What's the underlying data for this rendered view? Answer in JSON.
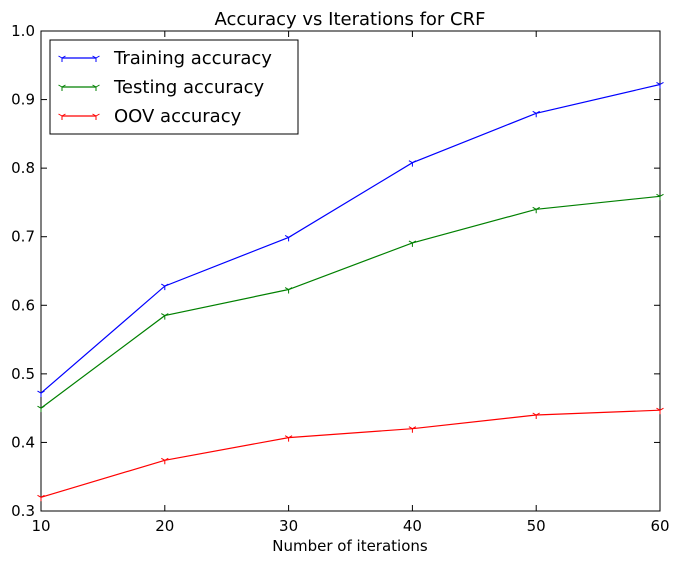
{
  "chart_data": {
    "type": "line",
    "title": "Accuracy vs Iterations for CRF",
    "xlabel": "Number of iterations",
    "ylabel": "",
    "x": [
      10,
      20,
      30,
      40,
      50,
      60
    ],
    "xlim": [
      10,
      60
    ],
    "ylim": [
      0.3,
      1.0
    ],
    "xticks": [
      10,
      20,
      30,
      40,
      50,
      60
    ],
    "xtick_labels": [
      "10",
      "20",
      "30",
      "40",
      "50",
      "60"
    ],
    "yticks": [
      0.3,
      0.4,
      0.5,
      0.6,
      0.7,
      0.8,
      0.9,
      1.0
    ],
    "ytick_labels": [
      "0.3",
      "0.4",
      "0.5",
      "0.6",
      "0.7",
      "0.8",
      "0.9",
      "1.0"
    ],
    "grid": false,
    "legend_position": "top-left",
    "marker": "tri_down",
    "series": [
      {
        "name": "Training accuracy",
        "color": "#0000ff",
        "values": [
          0.472,
          0.628,
          0.699,
          0.808,
          0.88,
          0.922
        ]
      },
      {
        "name": "Testing accuracy",
        "color": "#008000",
        "values": [
          0.45,
          0.585,
          0.623,
          0.691,
          0.74,
          0.759
        ]
      },
      {
        "name": "OOV accuracy",
        "color": "#ff0000",
        "values": [
          0.32,
          0.374,
          0.407,
          0.42,
          0.44,
          0.447
        ]
      }
    ]
  }
}
